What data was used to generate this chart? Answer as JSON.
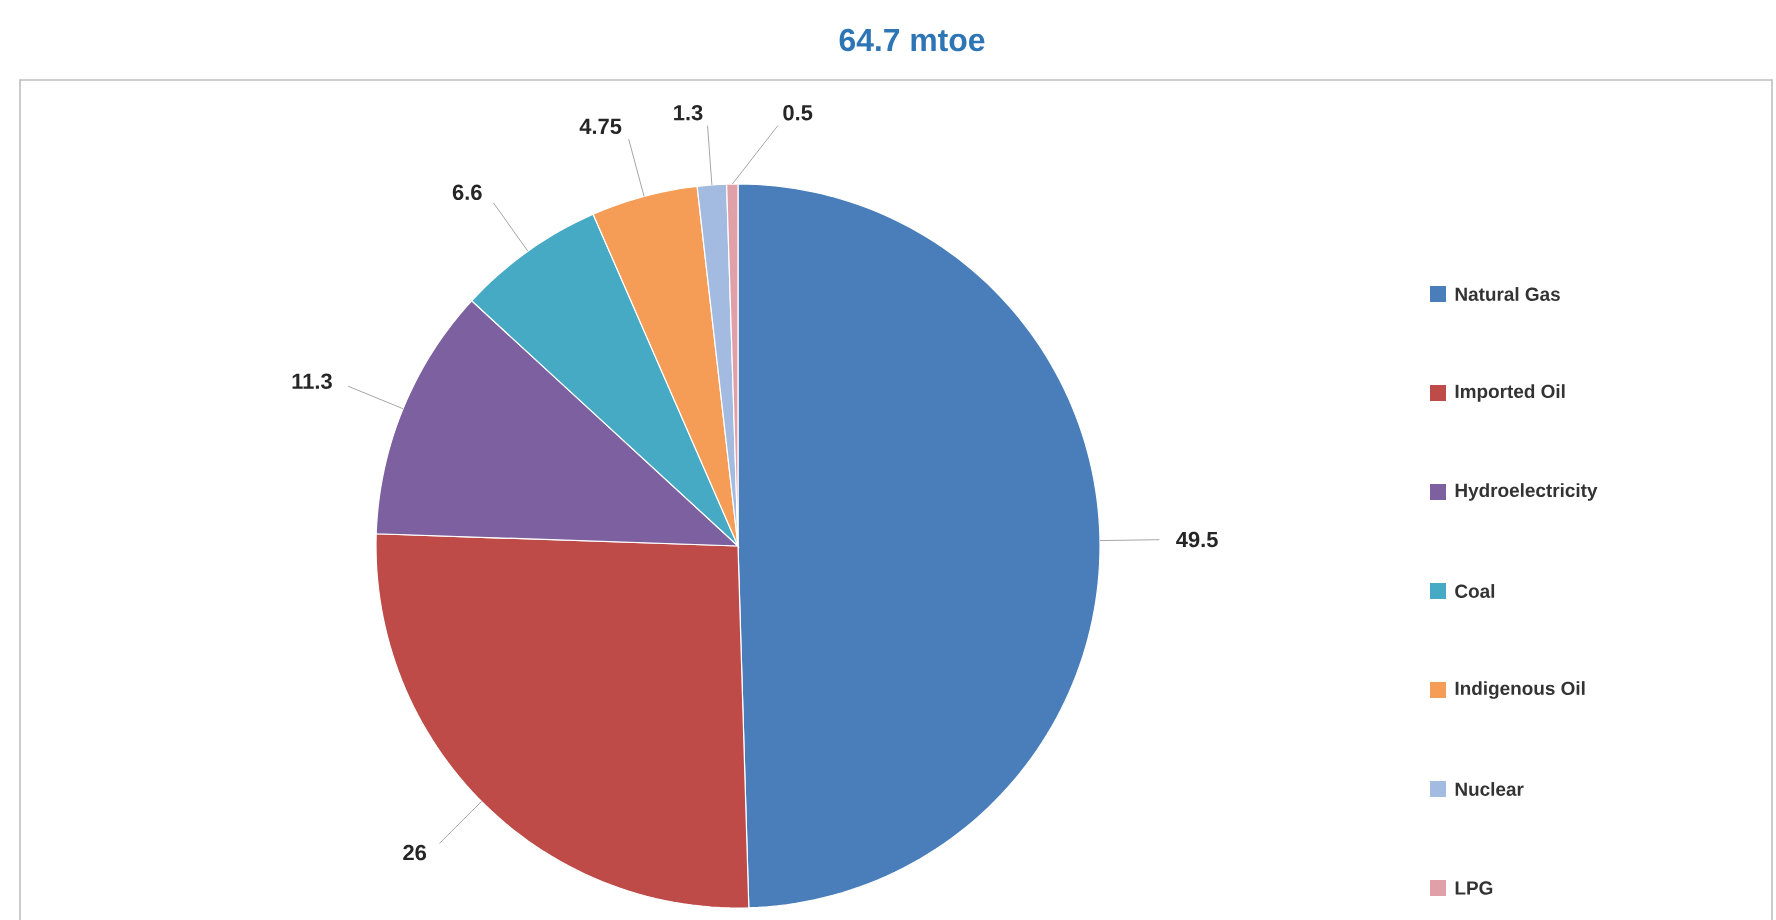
{
  "chart_data": {
    "type": "pie",
    "title": "64.7 mtoe",
    "categories": [
      "Natural Gas",
      "Imported Oil",
      "Hydroelectricity",
      "Coal",
      "Indigenous Oil",
      "Nuclear",
      "LPG"
    ],
    "values": [
      49.5,
      26,
      11.3,
      6.6,
      4.75,
      1.3,
      0.5
    ],
    "colors": [
      "#4a7ebb",
      "#be4b48",
      "#7d60a0",
      "#46aac5",
      "#f59d56",
      "#a3bbe0",
      "#e0a0a8"
    ],
    "legend": "right",
    "data_labels": true
  }
}
